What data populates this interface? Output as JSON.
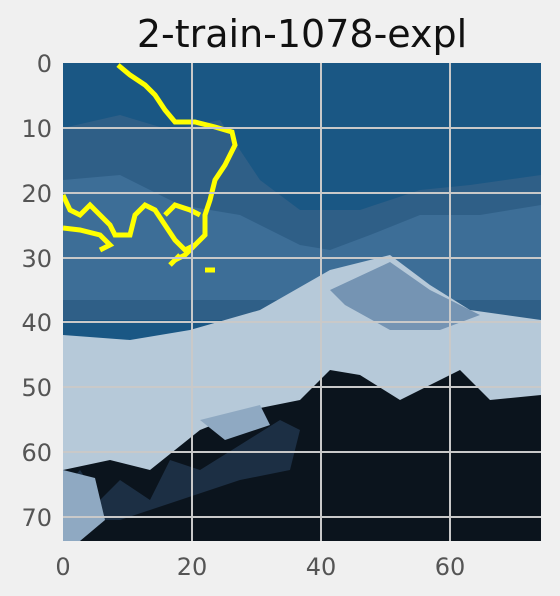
{
  "figure": {
    "title": "2-train-1078-expl",
    "x_ticks": [
      "0",
      "20",
      "40",
      "60"
    ],
    "y_ticks": [
      "0",
      "10",
      "20",
      "30",
      "40",
      "50",
      "60",
      "70"
    ]
  },
  "image": {
    "description_colors": {
      "sky": "#1a5784",
      "mountain_dark": "#2f5f87",
      "snow": "#b6c9d9",
      "forest": "#0b141d",
      "outline": "#ffff00",
      "grid": "#c9c9c9",
      "background": "#f0f0f0"
    }
  }
}
